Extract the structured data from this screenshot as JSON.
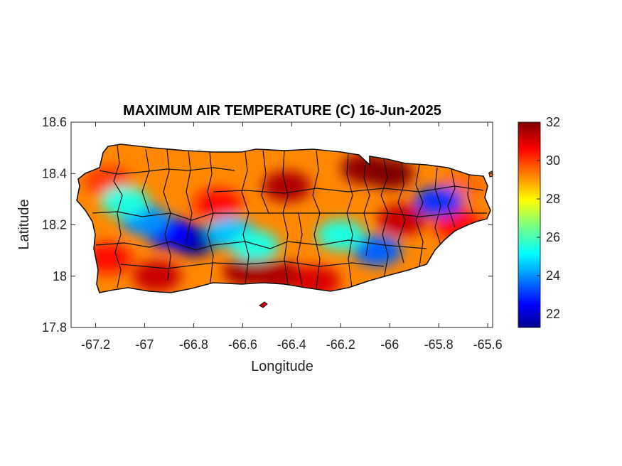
{
  "chart_data": {
    "type": "heatmap",
    "title": "MAXIMUM AIR TEMPERATURE (C) 16-Jun-2025",
    "xlabel": "Longitude",
    "ylabel": "Latitude",
    "xlim": [
      -67.3,
      -65.58
    ],
    "ylim": [
      17.8,
      18.6
    ],
    "x_ticks": [
      -67.2,
      -67,
      -66.8,
      -66.6,
      -66.4,
      -66.2,
      -66,
      -65.8,
      -65.6
    ],
    "x_tick_labels": [
      "-67.2",
      "-67",
      "-66.8",
      "-66.6",
      "-66.4",
      "-66.2",
      "-66",
      "-65.8",
      "-65.6"
    ],
    "y_ticks": [
      17.8,
      18,
      18.2,
      18.4,
      18.6
    ],
    "y_tick_labels": [
      "17.8",
      "18",
      "18.2",
      "18.4",
      "18.6"
    ],
    "colorbar": {
      "colormap": "jet",
      "range": [
        21.3,
        32.0
      ],
      "ticks": [
        22,
        24,
        26,
        28,
        30,
        32
      ],
      "tick_labels": [
        "22",
        "24",
        "26",
        "28",
        "30",
        "32"
      ]
    },
    "hotspots": [
      {
        "lon": -66.42,
        "lat": 18.35,
        "value": 31.5
      },
      {
        "lon": -66.1,
        "lat": 18.42,
        "value": 31.8
      },
      {
        "lon": -66.0,
        "lat": 18.4,
        "value": 32.0
      },
      {
        "lon": -65.95,
        "lat": 18.22,
        "value": 31.2
      },
      {
        "lon": -66.45,
        "lat": 18.0,
        "value": 31.5
      },
      {
        "lon": -66.58,
        "lat": 18.02,
        "value": 31.6
      },
      {
        "lon": -66.3,
        "lat": 17.98,
        "value": 31.0
      },
      {
        "lon": -66.95,
        "lat": 18.0,
        "value": 31.2
      },
      {
        "lon": -67.15,
        "lat": 18.07,
        "value": 30.5
      },
      {
        "lon": -67.15,
        "lat": 18.37,
        "value": 30.0
      },
      {
        "lon": -66.7,
        "lat": 18.28,
        "value": 30.5
      },
      {
        "lon": -65.72,
        "lat": 18.2,
        "value": 30.5
      },
      {
        "lon": -65.7,
        "lat": 18.35,
        "value": 29.5
      }
    ],
    "coldspots": [
      {
        "lon": -66.8,
        "lat": 18.14,
        "value": 21.5
      },
      {
        "lon": -66.9,
        "lat": 18.17,
        "value": 22.5
      },
      {
        "lon": -67.0,
        "lat": 18.22,
        "value": 24.0
      },
      {
        "lon": -66.65,
        "lat": 18.17,
        "value": 24.5
      },
      {
        "lon": -66.05,
        "lat": 18.1,
        "value": 23.5
      },
      {
        "lon": -65.8,
        "lat": 18.29,
        "value": 23.0
      },
      {
        "lon": -66.2,
        "lat": 18.16,
        "value": 25.5
      },
      {
        "lon": -67.08,
        "lat": 18.29,
        "value": 25.5
      },
      {
        "lon": -66.55,
        "lat": 18.12,
        "value": 25.5
      }
    ]
  }
}
